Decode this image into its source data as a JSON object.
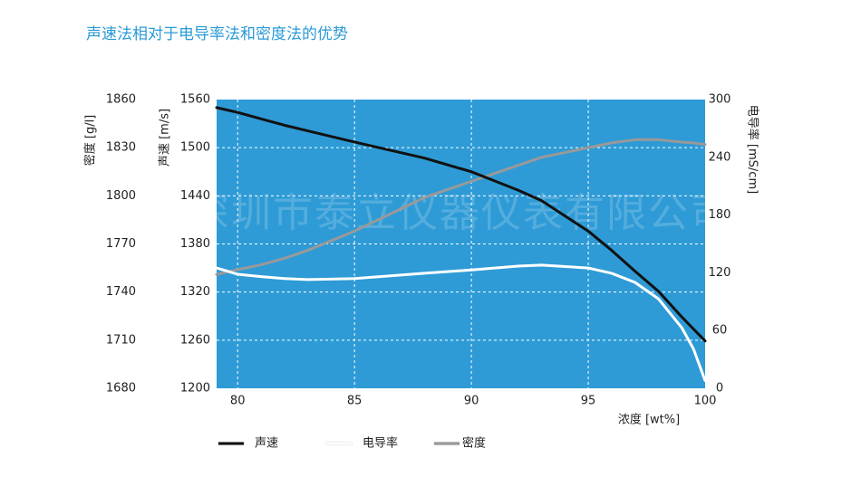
{
  "chart_data": {
    "type": "line",
    "title": "声速法相对于电导率法和密度法的优势",
    "watermark": "深圳市泰立仪器仪表有限公司",
    "x_label": "浓度 [wt%]",
    "y_label": "声速 [m/s]",
    "y2_label": "电导率 [mS/cm]",
    "y3_label": "密度 [g/l]",
    "x": [
      79.1,
      80,
      81,
      82,
      83,
      85,
      88,
      90,
      92,
      93,
      95,
      96,
      97,
      98,
      99,
      99.5,
      100
    ],
    "xlim": [
      79.1,
      100
    ],
    "xticks": [
      80,
      85,
      90,
      95,
      100
    ],
    "ylim": [
      1200,
      1560
    ],
    "yticks": [
      1200,
      1260,
      1320,
      1380,
      1440,
      1500,
      1560
    ],
    "y2lim": [
      0,
      300
    ],
    "y2ticks": [
      0,
      60,
      120,
      180,
      240,
      300
    ],
    "y3lim": [
      1680,
      1860
    ],
    "y3ticks": [
      1680,
      1710,
      1740,
      1770,
      1800,
      1830,
      1860
    ],
    "grid": true,
    "background": "#2e9bd6",
    "series": [
      {
        "name": "声速",
        "color": "#111111",
        "axis": "y",
        "values": [
          1550,
          1544,
          1536,
          1528,
          1521,
          1507,
          1487,
          1470,
          1447,
          1434,
          1396,
          1372,
          1346,
          1321,
          1289,
          1274,
          1259
        ]
      },
      {
        "name": "电导率",
        "color": "#ffffff",
        "axis": "y2",
        "values": [
          125,
          118.5,
          116,
          114,
          113,
          114,
          119.5,
          123,
          127,
          128,
          125,
          119.5,
          110,
          93,
          63,
          41,
          8
        ]
      },
      {
        "name": "密度",
        "color": "#999999",
        "axis": "y3",
        "values": [
          1751,
          1754,
          1757,
          1761,
          1766,
          1778,
          1799,
          1809,
          1819,
          1824,
          1830,
          1833,
          1835,
          1835,
          1833.5,
          1833,
          1832
        ]
      }
    ]
  }
}
